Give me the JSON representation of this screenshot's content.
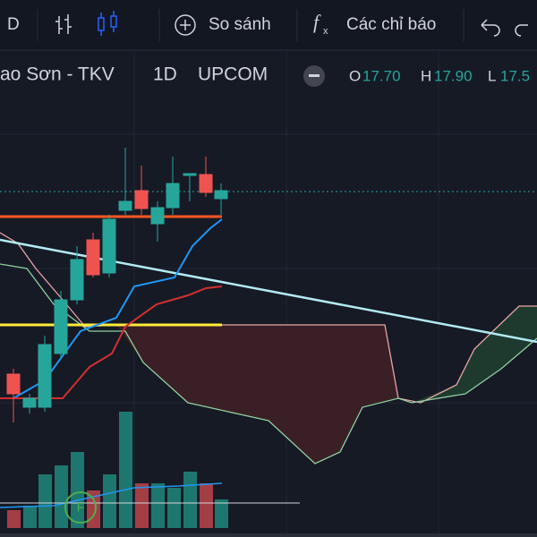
{
  "toolbar": {
    "interval": "D",
    "compare": "So sánh",
    "indicators": "Các chỉ báo"
  },
  "legend": {
    "symbol": "ao Sơn - TKV",
    "timeframe": "1D",
    "exchange": "UPCOM",
    "open_label": "O",
    "open": "17.70",
    "high_label": "H",
    "high": "17.90",
    "low_label": "L",
    "low": "17.5"
  }
}
